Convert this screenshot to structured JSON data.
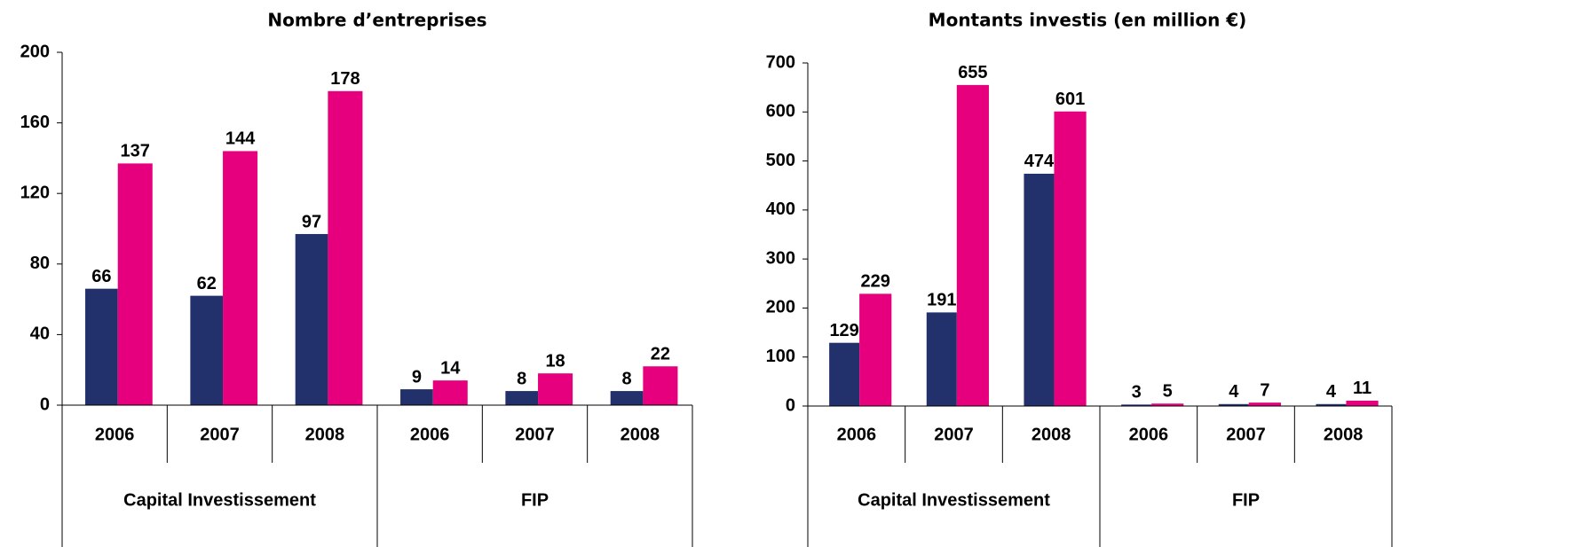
{
  "chart_data": [
    {
      "type": "bar",
      "title": "Nombre d’entreprises",
      "groups": [
        {
          "label": "Capital Investissement",
          "categories": [
            "2006",
            "2007",
            "2008"
          ]
        },
        {
          "label": "FIP",
          "categories": [
            "2006",
            "2007",
            "2008"
          ]
        }
      ],
      "series": [
        {
          "color": "#22306b",
          "values": [
            66,
            62,
            97,
            9,
            8,
            8
          ]
        },
        {
          "color": "#e6007e",
          "values": [
            137,
            144,
            178,
            14,
            18,
            22
          ]
        }
      ],
      "ylim": [
        0,
        200
      ],
      "yticks": [
        0,
        40,
        80,
        120,
        160,
        200
      ]
    },
    {
      "type": "bar",
      "title": "Montants investis (en million €)",
      "groups": [
        {
          "label": "Capital Investissement",
          "categories": [
            "2006",
            "2007",
            "2008"
          ]
        },
        {
          "label": "FIP",
          "categories": [
            "2006",
            "2007",
            "2008"
          ]
        }
      ],
      "series": [
        {
          "color": "#22306b",
          "values": [
            129,
            191,
            474,
            3,
            4,
            4
          ]
        },
        {
          "color": "#e6007e",
          "values": [
            229,
            655,
            601,
            5,
            7,
            11
          ]
        }
      ],
      "ylim": [
        0,
        700
      ],
      "yticks": [
        0,
        100,
        200,
        300,
        400,
        500,
        600,
        700
      ]
    }
  ]
}
